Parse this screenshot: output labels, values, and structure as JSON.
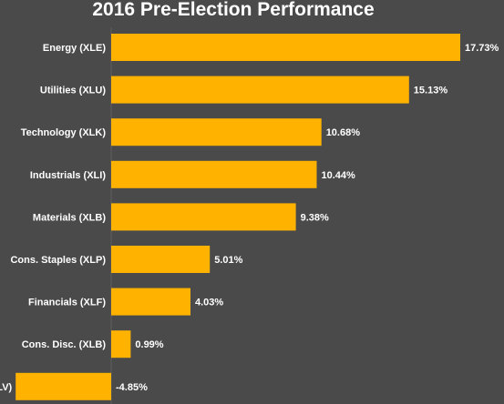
{
  "chart_data": {
    "type": "bar",
    "orientation": "horizontal",
    "title": "2016 Pre-Election Performance",
    "categories": [
      "Energy (XLE)",
      "Utilities (XLU)",
      "Technology (XLK)",
      "Industrials (XLI)",
      "Materials (XLB)",
      "Cons. Staples (XLP)",
      "Financials (XLF)",
      "Cons. Disc. (XLB)",
      "Healthcare (XLV)"
    ],
    "values": [
      17.73,
      15.13,
      10.68,
      10.44,
      9.38,
      5.01,
      4.03,
      0.99,
      -4.85
    ],
    "value_labels": [
      "17.73%",
      "15.13%",
      "10.68%",
      "10.44%",
      "9.38%",
      "5.01%",
      "4.03%",
      "0.99%",
      "-4.85%"
    ],
    "xlabel": "",
    "ylabel": "",
    "legend": "none",
    "grid": false,
    "colors": {
      "background": "#4a4a4a",
      "bar": "#ffb300",
      "text": "#ffffff"
    }
  }
}
